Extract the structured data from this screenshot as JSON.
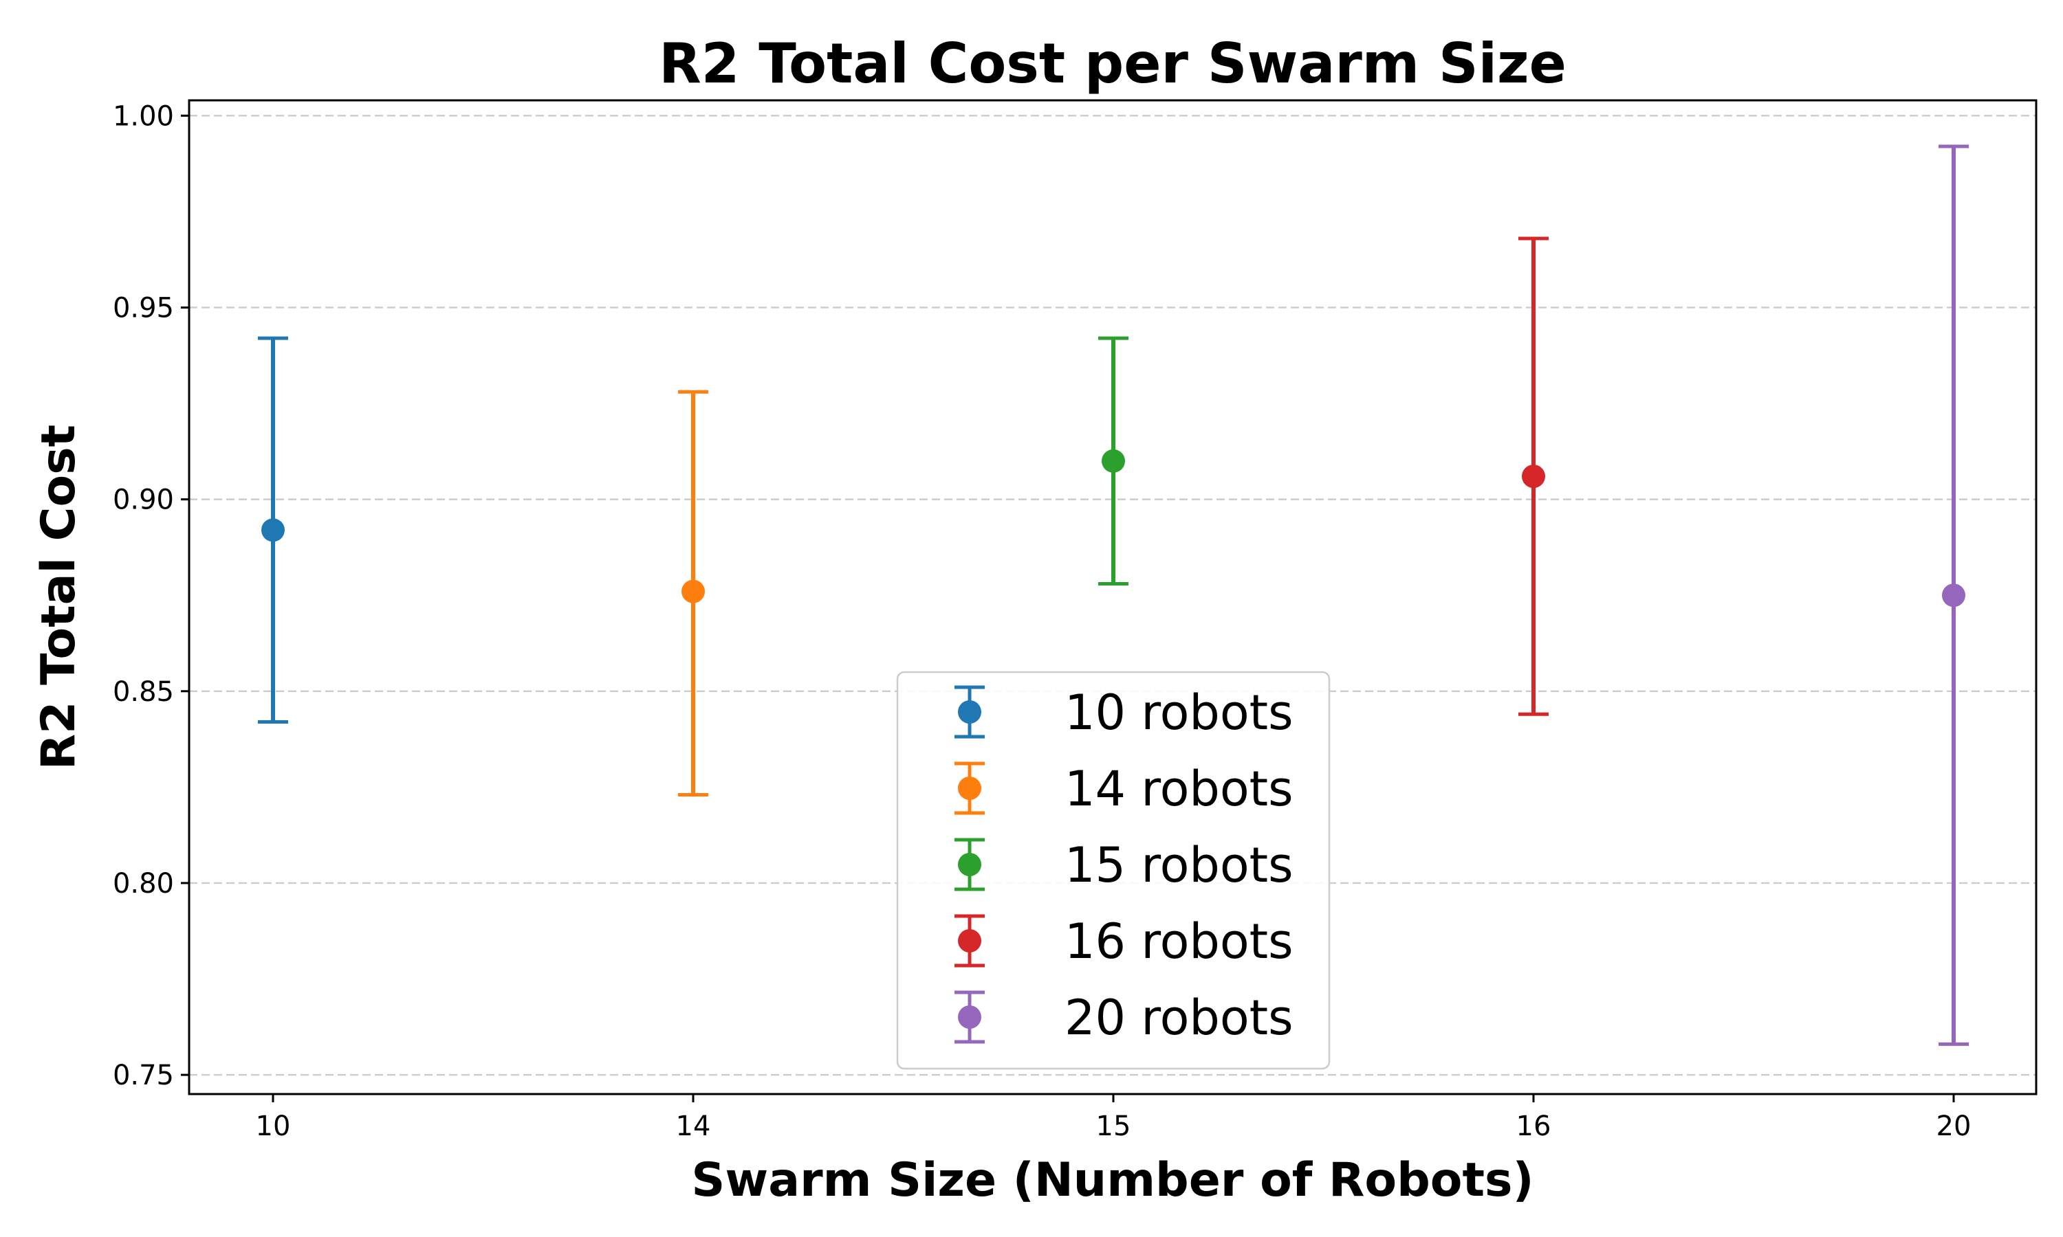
{
  "chart_data": {
    "type": "scatter",
    "title": "R2 Total Cost per Swarm Size",
    "xlabel": "Swarm Size (Number of Robots)",
    "ylabel": "R2 Total Cost",
    "categories": [
      "10",
      "14",
      "15",
      "16",
      "20"
    ],
    "ylim": [
      0.745,
      1.004
    ],
    "yticks": [
      "0.75",
      "0.80",
      "0.85",
      "0.90",
      "0.95",
      "1.00"
    ],
    "grid": "horizontal dashed",
    "legend_position": "lower center",
    "series": [
      {
        "name": "10 robots",
        "category": "10",
        "value": 0.892,
        "err_low": 0.842,
        "err_high": 0.942,
        "color": "#1f77b4"
      },
      {
        "name": "14 robots",
        "category": "14",
        "value": 0.876,
        "err_low": 0.823,
        "err_high": 0.928,
        "color": "#ff7f0e"
      },
      {
        "name": "15 robots",
        "category": "15",
        "value": 0.91,
        "err_low": 0.878,
        "err_high": 0.942,
        "color": "#2ca02c"
      },
      {
        "name": "16 robots",
        "category": "16",
        "value": 0.906,
        "err_low": 0.844,
        "err_high": 0.968,
        "color": "#d62728"
      },
      {
        "name": "20 robots",
        "category": "20",
        "value": 0.875,
        "err_low": 0.758,
        "err_high": 0.992,
        "color": "#9467bd"
      }
    ]
  }
}
